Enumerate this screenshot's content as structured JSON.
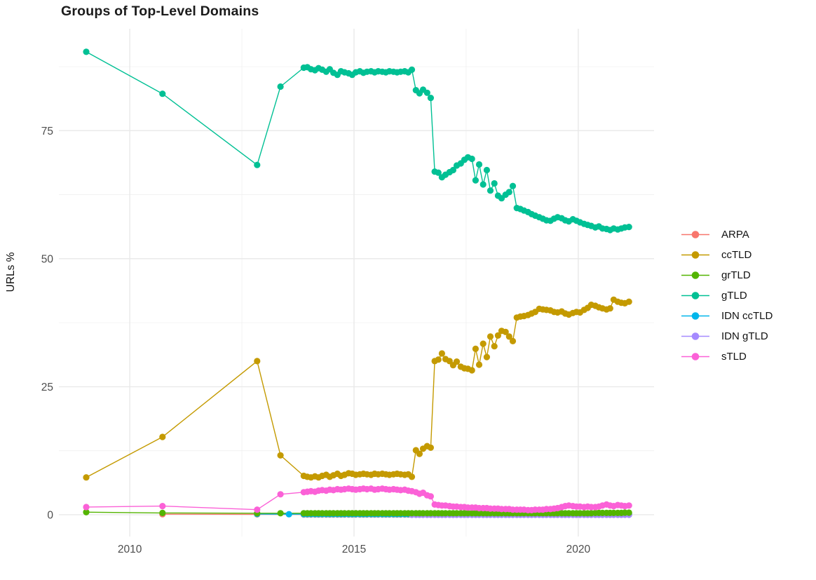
{
  "chart_data": {
    "type": "line",
    "title": "Groups of Top-Level Domains",
    "xlabel": "",
    "ylabel": "URLs %",
    "legend_position": "right",
    "grid": true,
    "background": "#ffffff",
    "gridline_major_color": "#e9e9e9",
    "gridline_minor_color": "#f0f0f0",
    "axis_text_color": "#4d4d4d",
    "xlim": [
      2008.42,
      2021.69
    ],
    "ylim": [
      -4.25,
      94.9
    ],
    "x_ticks": [
      "2010",
      "2015",
      "2020"
    ],
    "x_tick_values": [
      2010,
      2015,
      2020
    ],
    "x_minor_gridlines": [
      2012.5,
      2017.5
    ],
    "y_ticks": [
      "0",
      "25",
      "50",
      "75"
    ],
    "y_tick_values": [
      0,
      25,
      50,
      75
    ],
    "y_minor_gridlines": [
      12.5,
      37.5,
      62.5,
      87.5
    ],
    "x_dense": [
      2013.88,
      2013.96,
      2014.04,
      2014.13,
      2014.21,
      2014.29,
      2014.38,
      2014.46,
      2014.54,
      2014.63,
      2014.71,
      2014.79,
      2014.88,
      2014.96,
      2015.04,
      2015.13,
      2015.21,
      2015.29,
      2015.38,
      2015.46,
      2015.54,
      2015.63,
      2015.71,
      2015.79,
      2015.88,
      2015.96,
      2016.04,
      2016.13,
      2016.21,
      2016.29,
      2016.38,
      2016.46,
      2016.54,
      2016.63,
      2016.71,
      2016.8,
      2016.88,
      2016.96,
      2017.04,
      2017.13,
      2017.21,
      2017.29,
      2017.38,
      2017.46,
      2017.54,
      2017.63,
      2017.71,
      2017.79,
      2017.88,
      2017.96,
      2018.04,
      2018.13,
      2018.21,
      2018.29,
      2018.38,
      2018.46,
      2018.54,
      2018.63,
      2018.71,
      2018.79,
      2018.88,
      2018.96,
      2019.04,
      2019.13,
      2019.21,
      2019.29,
      2019.38,
      2019.46,
      2019.54,
      2019.63,
      2019.71,
      2019.79,
      2019.88,
      2019.96,
      2020.04,
      2020.13,
      2020.21,
      2020.29,
      2020.38,
      2020.46,
      2020.54,
      2020.63,
      2020.71,
      2020.79,
      2020.88,
      2020.96,
      2021.04,
      2021.13
    ],
    "draw_order": [
      "ARPA",
      "IDN ccTLD",
      "IDN gTLD",
      "ccTLD",
      "grTLD",
      "gTLD",
      "sTLD"
    ],
    "series": [
      {
        "name": "ARPA",
        "color": "#F8766D",
        "sparse_points": [
          [
            2010.73,
            0.1
          ],
          [
            2012.84,
            0.08
          ]
        ],
        "dense_start_index": 0,
        "dense_values": [
          0.05,
          0.05,
          0.05,
          0.05,
          0.05,
          0.05,
          0.05,
          0.05,
          0.05,
          0.05,
          0.05,
          0.05,
          0.05,
          0.05,
          0.05,
          0.05,
          0.05,
          0.05,
          0.05,
          0.05,
          0.05,
          0.05,
          0.05,
          0.05,
          0.05,
          0.05,
          0.05,
          0.05,
          0.05,
          0.05,
          0.05,
          0.05,
          0.05,
          0.05,
          0.05,
          0.05,
          0.05,
          0.05,
          0.05,
          0.05,
          0.05,
          0.05,
          0.05,
          0.05,
          0.05,
          0.05,
          0.05,
          0.05,
          0.05,
          0.05,
          0.05,
          0.05,
          0.05,
          0.05,
          0.05,
          0.05,
          0.05,
          0.05,
          0.05,
          0.05,
          0.05,
          0.05,
          0.05,
          0.05,
          0.05,
          0.05,
          0.05,
          0.05,
          0.05,
          0.05,
          0.05,
          0.05,
          0.05,
          0.05,
          0.05,
          0.05,
          0.05,
          0.05,
          0.05,
          0.05,
          0.05,
          0.05,
          0.05,
          0.05,
          0.05,
          0.05,
          0.05,
          0.05
        ]
      },
      {
        "name": "ccTLD",
        "color": "#C49A00",
        "sparse_points": [
          [
            2009.03,
            7.3
          ],
          [
            2010.73,
            15.2
          ],
          [
            2012.84,
            30.0
          ],
          [
            2013.36,
            11.6
          ]
        ],
        "dense_start_index": 0,
        "dense_values": [
          7.6,
          7.4,
          7.3,
          7.5,
          7.3,
          7.6,
          7.8,
          7.4,
          7.7,
          8.0,
          7.6,
          7.8,
          8.1,
          8.0,
          7.8,
          7.9,
          8.0,
          7.9,
          7.8,
          8.0,
          7.9,
          8.0,
          7.9,
          7.8,
          7.9,
          8.0,
          7.9,
          7.8,
          7.9,
          7.4,
          12.6,
          11.9,
          12.9,
          13.4,
          13.1,
          30.0,
          30.3,
          31.5,
          30.4,
          30.0,
          29.2,
          29.9,
          28.9,
          28.6,
          28.5,
          28.2,
          32.4,
          29.3,
          33.4,
          30.8,
          34.8,
          32.9,
          35.0,
          35.9,
          35.7,
          34.8,
          33.9,
          38.5,
          38.7,
          38.8,
          39.0,
          39.3,
          39.6,
          40.2,
          40.1,
          40.0,
          39.9,
          39.6,
          39.5,
          39.7,
          39.3,
          39.1,
          39.4,
          39.6,
          39.5,
          40.0,
          40.4,
          41.0,
          40.8,
          40.5,
          40.3,
          40.1,
          40.3,
          42.0,
          41.6,
          41.4,
          41.3,
          41.6
        ]
      },
      {
        "name": "grTLD",
        "color": "#53B400",
        "sparse_points": [
          [
            2009.03,
            0.5
          ],
          [
            2010.73,
            0.35
          ],
          [
            2012.84,
            0.3
          ],
          [
            2013.36,
            0.3
          ]
        ],
        "dense_start_index": 0,
        "dense_values": [
          0.3,
          0.3,
          0.3,
          0.3,
          0.3,
          0.3,
          0.3,
          0.3,
          0.3,
          0.3,
          0.3,
          0.3,
          0.3,
          0.3,
          0.3,
          0.3,
          0.3,
          0.3,
          0.3,
          0.3,
          0.3,
          0.3,
          0.3,
          0.3,
          0.3,
          0.3,
          0.3,
          0.3,
          0.3,
          0.3,
          0.3,
          0.3,
          0.3,
          0.3,
          0.3,
          0.3,
          0.3,
          0.3,
          0.3,
          0.3,
          0.3,
          0.3,
          0.3,
          0.3,
          0.3,
          0.3,
          0.3,
          0.3,
          0.3,
          0.3,
          0.3,
          0.3,
          0.3,
          0.3,
          0.3,
          0.3,
          0.3,
          0.3,
          0.3,
          0.3,
          0.3,
          0.3,
          0.3,
          0.3,
          0.3,
          0.3,
          0.3,
          0.3,
          0.3,
          0.3,
          0.3,
          0.3,
          0.3,
          0.3,
          0.3,
          0.3,
          0.3,
          0.3,
          0.35,
          0.35,
          0.35,
          0.35,
          0.35,
          0.35,
          0.35,
          0.35,
          0.4,
          0.4
        ]
      },
      {
        "name": "gTLD",
        "color": "#00C094",
        "sparse_points": [
          [
            2009.03,
            90.4
          ],
          [
            2010.73,
            82.2
          ],
          [
            2012.84,
            68.3
          ],
          [
            2013.36,
            83.6
          ]
        ],
        "dense_start_index": 0,
        "dense_values": [
          87.3,
          87.4,
          87.0,
          86.8,
          87.2,
          86.9,
          86.5,
          87.0,
          86.3,
          85.9,
          86.6,
          86.4,
          86.2,
          85.9,
          86.4,
          86.6,
          86.3,
          86.5,
          86.6,
          86.4,
          86.6,
          86.5,
          86.4,
          86.6,
          86.5,
          86.4,
          86.5,
          86.6,
          86.4,
          86.9,
          82.9,
          82.3,
          83.0,
          82.4,
          81.4,
          67.0,
          66.8,
          65.9,
          66.4,
          66.9,
          67.3,
          68.2,
          68.6,
          69.3,
          69.8,
          69.5,
          65.3,
          68.4,
          64.5,
          67.3,
          63.3,
          64.7,
          62.3,
          61.8,
          62.5,
          63.0,
          64.2,
          59.9,
          59.7,
          59.4,
          59.1,
          58.7,
          58.4,
          58.1,
          57.8,
          57.5,
          57.4,
          57.8,
          58.1,
          57.9,
          57.5,
          57.3,
          57.7,
          57.4,
          57.1,
          56.8,
          56.6,
          56.4,
          56.1,
          56.3,
          55.9,
          55.8,
          55.6,
          55.9,
          55.7,
          55.9,
          56.1,
          56.2
        ]
      },
      {
        "name": "IDN ccTLD",
        "color": "#00B6EB",
        "sparse_points": [
          [
            2012.84,
            0.15
          ],
          [
            2013.55,
            0.1
          ]
        ],
        "dense_start_index": 0,
        "dense_values": [
          0.1,
          0.1,
          0.1,
          0.1,
          0.1,
          0.1,
          0.1,
          0.1,
          0.1,
          0.1,
          0.1,
          0.1,
          0.1,
          0.1,
          0.1,
          0.1,
          0.1,
          0.1,
          0.1,
          0.1,
          0.1,
          0.1,
          0.1,
          0.1,
          0.1,
          0.1,
          0.1,
          0.1,
          0.1,
          0.1,
          0.1,
          0.1,
          0.1,
          0.1,
          0.1,
          0.1,
          0.1,
          0.1,
          0.1,
          0.1,
          0.1,
          0.1,
          0.1,
          0.1,
          0.1,
          0.1,
          0.1,
          0.1,
          0.1,
          0.1,
          0.1,
          0.1,
          0.1,
          0.1,
          0.1,
          0.1,
          0.1,
          0.1,
          0.1,
          0.1,
          0.1,
          0.1,
          0.1,
          0.1,
          0.1,
          0.1,
          0.1,
          0.1,
          0.1,
          0.1,
          0.1,
          0.1,
          0.1,
          0.1,
          0.1,
          0.1,
          0.1,
          0.1,
          0.1,
          0.1,
          0.1,
          0.1,
          0.1,
          0.1,
          0.1,
          0.1,
          0.1,
          0.1
        ]
      },
      {
        "name": "IDN gTLD",
        "color": "#A58AFF",
        "sparse_points": [],
        "dense_start_index": 29,
        "dense_values": [
          0,
          0,
          0,
          0,
          0,
          0,
          0,
          0,
          0,
          0,
          0,
          0,
          0,
          0,
          0,
          0,
          0,
          0,
          0,
          0,
          0,
          0,
          0,
          0,
          0,
          0,
          0,
          0,
          0,
          0,
          0,
          0,
          0,
          0,
          0,
          0,
          0,
          0,
          0,
          0,
          0,
          0,
          0,
          0,
          0,
          0,
          0,
          0,
          0,
          0,
          0,
          0,
          0,
          0,
          0,
          0,
          0,
          0,
          0
        ]
      },
      {
        "name": "sTLD",
        "color": "#FB61D7",
        "sparse_points": [
          [
            2009.03,
            1.5
          ],
          [
            2010.73,
            1.7
          ],
          [
            2012.84,
            1.0
          ],
          [
            2013.36,
            4.0
          ]
        ],
        "dense_start_index": 0,
        "dense_values": [
          4.4,
          4.5,
          4.6,
          4.5,
          4.7,
          4.8,
          4.7,
          4.9,
          4.8,
          5.0,
          4.9,
          5.0,
          5.1,
          5.0,
          4.9,
          5.0,
          5.1,
          5.0,
          5.1,
          4.9,
          5.0,
          5.1,
          5.0,
          4.9,
          5.0,
          4.9,
          4.8,
          4.9,
          4.7,
          4.6,
          4.4,
          4.1,
          4.3,
          3.8,
          3.6,
          2.0,
          1.9,
          1.8,
          1.8,
          1.7,
          1.6,
          1.6,
          1.5,
          1.5,
          1.4,
          1.4,
          1.4,
          1.3,
          1.3,
          1.3,
          1.2,
          1.2,
          1.2,
          1.1,
          1.1,
          1.1,
          1.0,
          1.0,
          1.0,
          1.0,
          0.9,
          0.9,
          1.0,
          1.0,
          1.0,
          1.1,
          1.1,
          1.2,
          1.3,
          1.5,
          1.7,
          1.8,
          1.7,
          1.6,
          1.6,
          1.5,
          1.6,
          1.5,
          1.5,
          1.6,
          1.8,
          2.0,
          1.8,
          1.7,
          1.9,
          1.8,
          1.7,
          1.8
        ]
      }
    ]
  }
}
